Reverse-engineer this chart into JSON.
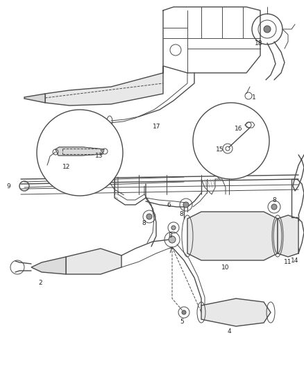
{
  "bg_color": "#ffffff",
  "line_color": "#4a4a4a",
  "fig_width": 4.39,
  "fig_height": 5.33,
  "dpi": 100
}
